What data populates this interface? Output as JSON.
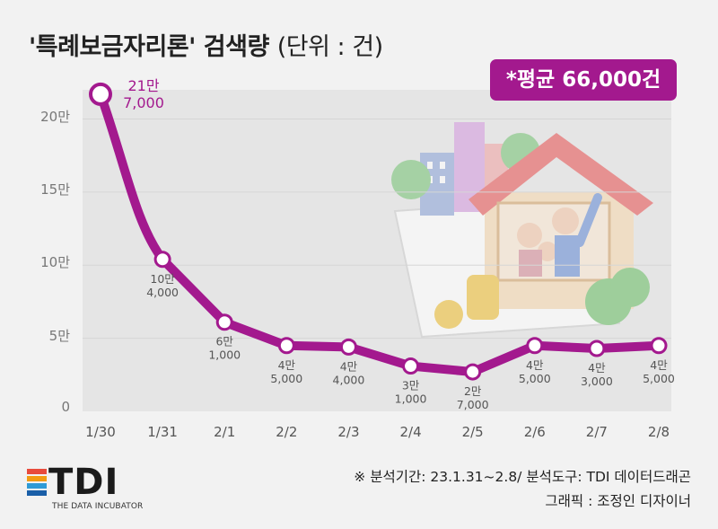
{
  "title": "'특례보금자리론' 검색량",
  "unit": "(단위 : 건)",
  "average_badge": "*평균 66,000건",
  "footer": {
    "note": "※ 분석기간: 23.1.31~2.8/ 분석도구: TDI 데이터드래곤",
    "credit": "그래픽 : 조정인 디자이너"
  },
  "logo": {
    "text": "TDI",
    "subtitle": "THE DATA INCUBATOR"
  },
  "colors": {
    "accent": "#a3198e",
    "label_gray": "#555555",
    "plot_bg": "#e5e5e5",
    "page_bg": "#f2f2f2"
  },
  "chart_data": {
    "type": "line",
    "categories": [
      "1/30",
      "1/31",
      "2/1",
      "2/2",
      "2/3",
      "2/4",
      "2/5",
      "2/6",
      "2/7",
      "2/8"
    ],
    "values": [
      217000,
      104000,
      61000,
      45000,
      44000,
      31000,
      27000,
      45000,
      43000,
      45000
    ],
    "data_labels": [
      [
        "21만",
        "7,000"
      ],
      [
        "10만",
        "4,000"
      ],
      [
        "6만",
        "1,000"
      ],
      [
        "4만",
        "5,000"
      ],
      [
        "4만",
        "4,000"
      ],
      [
        "3만",
        "1,000"
      ],
      [
        "2만",
        "7,000"
      ],
      [
        "4만",
        "5,000"
      ],
      [
        "4만",
        "3,000"
      ],
      [
        "4만",
        "5,000"
      ]
    ],
    "y_ticks": [
      0,
      50000,
      100000,
      150000,
      200000
    ],
    "y_tick_labels": [
      "0",
      "5만",
      "10만",
      "15만",
      "20만"
    ],
    "ylim": [
      0,
      220000
    ],
    "grid": true,
    "legend": "none"
  }
}
